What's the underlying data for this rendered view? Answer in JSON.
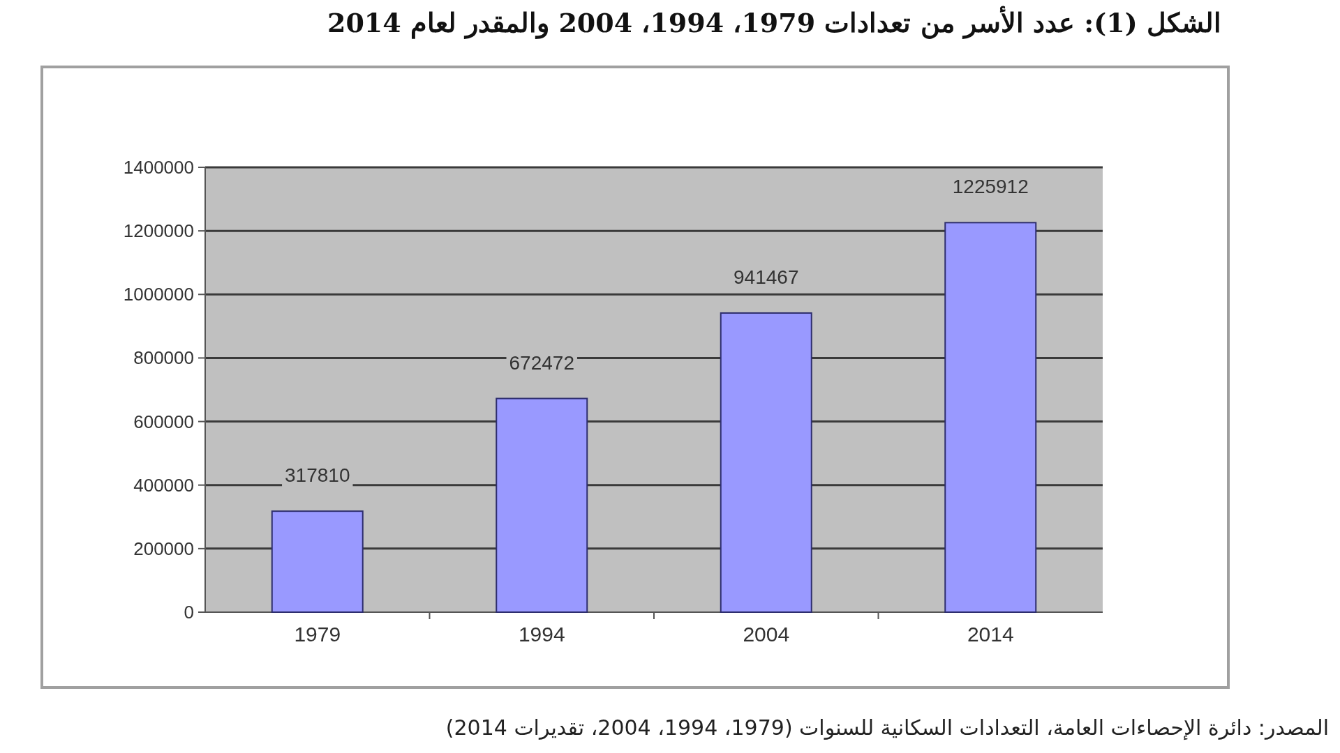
{
  "chart_data": {
    "type": "bar",
    "title": "الشكل (1): عدد الأسر من تعدادات 1979، 1994، 2004 والمقدر لعام 2014",
    "categories": [
      "1979",
      "1994",
      "2004",
      "2014"
    ],
    "values": [
      317810,
      672472,
      941467,
      1225912
    ],
    "color": "#9999ff",
    "ylim": [
      0,
      1400000
    ],
    "yticks": [
      0,
      200000,
      400000,
      600000,
      800000,
      1000000,
      1200000,
      1400000
    ],
    "grid": "y",
    "data_labels": true,
    "annotations": [
      "المصدر: دائرة الإحصاءات العامة، التعدادات السكانية للسنوات (1979، 1994، 2004، تقديرات 2014)"
    ]
  }
}
